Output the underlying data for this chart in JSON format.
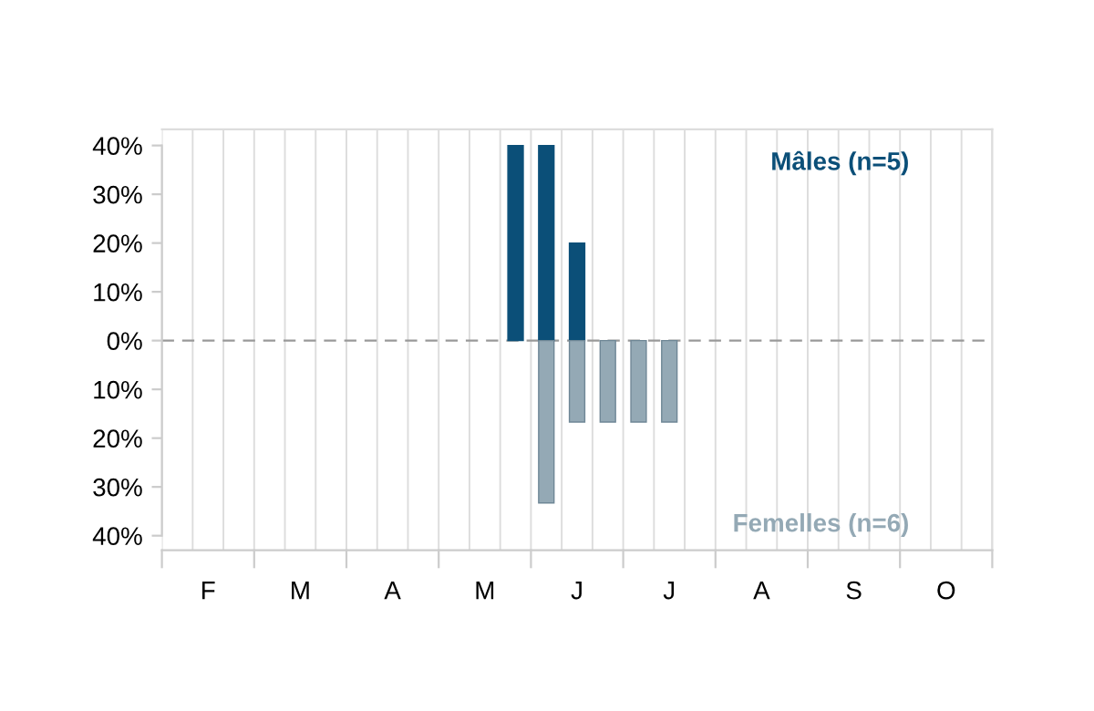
{
  "chart_data": {
    "type": "bar",
    "categories": [
      null,
      "F",
      null,
      null,
      "M",
      null,
      null,
      "A",
      null,
      null,
      "M",
      null,
      null,
      "J",
      null,
      null,
      "J",
      null,
      null,
      "A",
      null,
      null,
      "S",
      null,
      null,
      "O",
      null
    ],
    "series": [
      {
        "name": "Mâles (n=5)",
        "color": "#0b4f78",
        "values": [
          null,
          null,
          null,
          null,
          null,
          null,
          null,
          null,
          null,
          null,
          null,
          40,
          40,
          20,
          null,
          null,
          null,
          null,
          null,
          null,
          null,
          null,
          null,
          null,
          null,
          null,
          null
        ]
      },
      {
        "name": "Femelles (n=6)",
        "color": "#94a9b5",
        "values": [
          null,
          null,
          null,
          null,
          null,
          null,
          null,
          null,
          null,
          null,
          null,
          null,
          -33.3,
          -16.7,
          -16.7,
          -16.7,
          -16.7,
          null,
          null,
          null,
          null,
          null,
          null,
          null,
          null,
          null,
          null
        ]
      }
    ],
    "ylim": [
      -43,
      43.3
    ],
    "yticks": [
      {
        "value": -40,
        "label": "40%"
      },
      {
        "value": -30,
        "label": "30%"
      },
      {
        "value": -20,
        "label": "20%"
      },
      {
        "value": -10,
        "label": "10%"
      },
      {
        "value": 0,
        "label": "0%"
      },
      {
        "value": 10,
        "label": "10%"
      },
      {
        "value": 20,
        "label": "20%"
      },
      {
        "value": 30,
        "label": "30%"
      },
      {
        "value": 40,
        "label": "40%"
      }
    ],
    "ref_lines": [
      {
        "axis": "y",
        "value": 0,
        "color": "#999999",
        "line_style": "dashed"
      }
    ],
    "grid": "x"
  }
}
